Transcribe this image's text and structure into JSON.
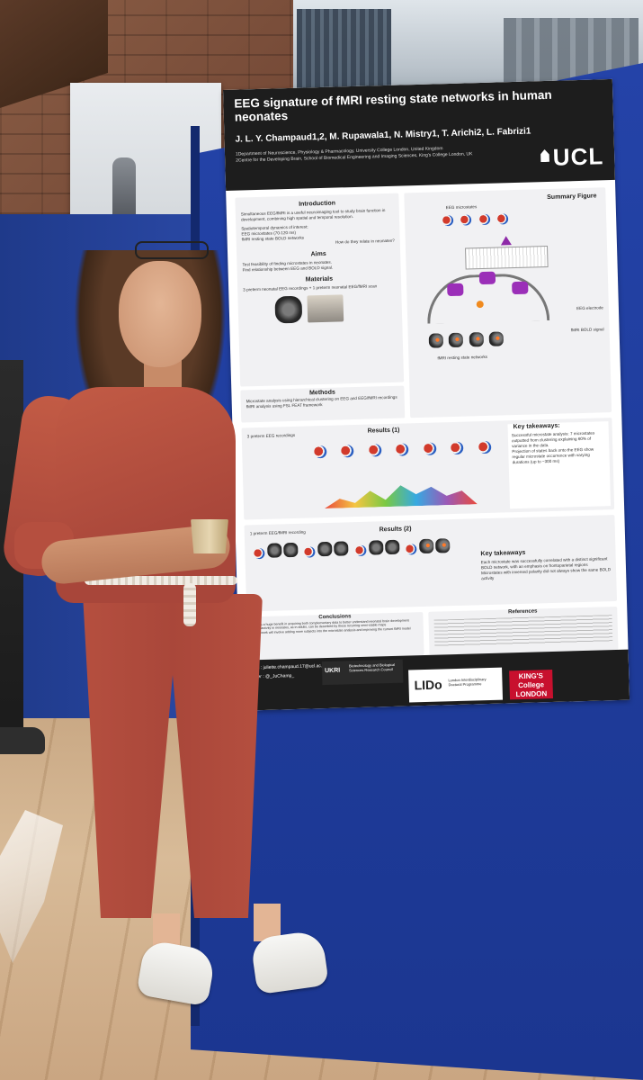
{
  "poster": {
    "title": "EEG signature of fMRI resting state networks in human neonates",
    "authors": "J. L. Y. Champaud1,2, M. Rupawala1, N. Mistry1, T. Arichi2, L. Fabrizi1",
    "affiliation_1": "1Department of Neuroscience, Physiology & Pharmacology, University College London, United Kingdom",
    "affiliation_2": "2Centre for the Developing Brain, School of Biomedical Engineering and Imaging Sciences, King's College London, UK",
    "ucl_logo": "UCL",
    "introduction": {
      "heading": "Introduction",
      "text": "Simultaneous EEG/fMRI is a useful neuroimaging tool to study brain function in development, combining high spatial and temporal resolution.",
      "spatio": "Spatiotemporal dynamics of interest:",
      "b1": "EEG microstates (70-120 ms)",
      "b2": "fMRI resting state BOLD networks",
      "question": "How do they relate in neonates?"
    },
    "aims": {
      "heading": "Aims",
      "a1": "Test feasibility of finding microstates in neonates.",
      "a2": "Find relationship between EEG and BOLD signal."
    },
    "materials": {
      "heading": "Materials",
      "text": "3 preterm neonatal EEG recordings + 1 preterm neonatal EEG/fMRI scan"
    },
    "methods": {
      "heading": "Methods",
      "m1": "Microstate analysis using hierarchical clustering on EEG and EEG/fMRI recordings",
      "m2": "fMRI analysis using FSL FEAT framework"
    },
    "summary": {
      "heading": "Summary Figure",
      "eeg_microstates": "EEG microstates",
      "eeg_electrode": "EEG electrode",
      "fmri_bold": "fMRI BOLD signal",
      "fmri_networks": "fMRI resting state networks"
    },
    "results1": {
      "heading": "Results (1)",
      "label": "3 preterm EEG recordings",
      "key_heading": "Key takeaways:",
      "k1": "Successful microstate analysis: 7 microstates outputted from clustering explaining 60% of variance in the data.",
      "k2": "Projection of states back onto the EEG show regular microstate occurrence with varying durations (up to ~300 ms)"
    },
    "results2": {
      "heading": "Results (2)",
      "label": "1 preterm EEG/fMRI recording",
      "key_heading": "Key takeaways",
      "k1": "Each microstate was successfully correlated with a distinct significant BOLD network, with an emphasis on frontoparietal regions",
      "k2": "Microstates with inversed polarity did not always show the same BOLD activity"
    },
    "conclusions": {
      "heading": "Conclusions",
      "c1": "There is a huge benefit in acquiring both complementary data to better understand neonatal brain development",
      "c2": "Neural activity in neonates, as in adults, can be described by these recurring semi-stable maps",
      "c3": "Future work will involve adding more subjects into the microstate analysis and improving the current fMRI model"
    },
    "references_heading": "References",
    "email": "Email : juliette.champaud.17@ucl.ac.uk",
    "twitter": "Twitter : @_JuChamp_",
    "bbsrc": "Biotechnology and Biological Sciences Research Council",
    "bbsrc_short": "UKRI",
    "lido": "LIDo",
    "lido_full": "London Interdisciplinary Doctoral Programme",
    "kings": "KING'S College LONDON"
  },
  "colors": {
    "board_blue": "#2443a8",
    "poster_header": "#1d1d1d",
    "jumpsuit": "#b54f3f",
    "kings_red": "#c8102e"
  }
}
